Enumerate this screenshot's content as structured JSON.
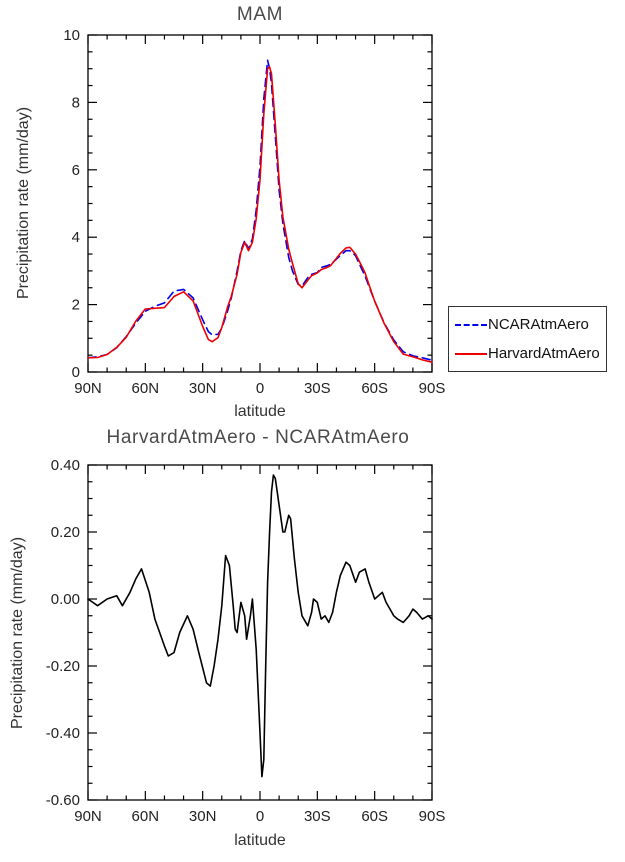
{
  "chart_data": [
    {
      "type": "line",
      "title": "MAM",
      "xlabel": "latitude",
      "ylabel": "Precipitation rate (mm/day)",
      "xlim": [
        90,
        -90
      ],
      "ylim": [
        0,
        10
      ],
      "grid": false,
      "legend_position": "right-outside",
      "xticks": {
        "values": [
          90,
          60,
          30,
          0,
          -30,
          -60,
          -90
        ],
        "labels": [
          "90N",
          "60N",
          "30N",
          "0",
          "30S",
          "60S",
          "90S"
        ],
        "minor_step": 10
      },
      "yticks": {
        "values": [
          0,
          2,
          4,
          6,
          8,
          10
        ],
        "labels": [
          "0",
          "2",
          "4",
          "6",
          "8",
          "10"
        ],
        "minor_step": 0.5
      },
      "x": [
        90,
        85,
        80,
        75,
        70,
        65,
        60,
        55,
        50,
        45,
        40,
        35,
        30,
        27,
        25,
        22,
        20,
        17,
        15,
        12,
        10,
        8,
        6,
        4,
        2,
        0,
        -2,
        -4,
        -5,
        -6,
        -8,
        -10,
        -12,
        -15,
        -17,
        -20,
        -22,
        -25,
        -27,
        -30,
        -32,
        -35,
        -37,
        -40,
        -42,
        -45,
        -47,
        -50,
        -52,
        -55,
        -57,
        -60,
        -65,
        -70,
        -75,
        -80,
        -85,
        -90
      ],
      "series": [
        {
          "name": "NCARAtmAero",
          "color": "#0000ee",
          "style": "dashed",
          "values": [
            0.42,
            0.45,
            0.52,
            0.72,
            1.05,
            1.45,
            1.8,
            1.95,
            2.05,
            2.4,
            2.45,
            2.2,
            1.55,
            1.2,
            1.1,
            1.12,
            1.3,
            1.8,
            2.2,
            3.0,
            3.6,
            3.9,
            3.65,
            3.95,
            4.8,
            6.1,
            8.1,
            9.25,
            9.0,
            8.55,
            7.0,
            5.4,
            4.4,
            3.4,
            3.0,
            2.6,
            2.55,
            2.8,
            2.9,
            2.95,
            3.1,
            3.15,
            3.2,
            3.35,
            3.45,
            3.6,
            3.6,
            3.45,
            3.2,
            2.85,
            2.55,
            2.1,
            1.45,
            0.95,
            0.6,
            0.48,
            0.42,
            0.35
          ]
        },
        {
          "name": "HarvardAtmAero",
          "color": "#ee0000",
          "style": "solid",
          "values": [
            0.42,
            0.43,
            0.52,
            0.73,
            1.03,
            1.51,
            1.87,
            1.89,
            1.91,
            2.24,
            2.38,
            2.11,
            1.35,
            0.96,
            0.9,
            1.02,
            1.32,
            1.92,
            2.25,
            2.9,
            3.55,
            3.85,
            3.6,
            3.85,
            4.55,
            5.7,
            7.65,
            9.0,
            9.05,
            8.85,
            7.35,
            5.7,
            4.6,
            3.65,
            3.22,
            2.62,
            2.5,
            2.72,
            2.86,
            2.94,
            3.04,
            3.1,
            3.16,
            3.37,
            3.52,
            3.68,
            3.7,
            3.5,
            3.28,
            2.94,
            2.6,
            2.1,
            1.44,
            0.9,
            0.53,
            0.45,
            0.36,
            0.29
          ]
        }
      ]
    },
    {
      "type": "line",
      "title": "HarvardAtmAero - NCARAtmAero",
      "xlabel": "latitude",
      "ylabel": "Precipitation rate (mm/day)",
      "xlim": [
        90,
        -90
      ],
      "ylim": [
        -0.6,
        0.4
      ],
      "grid": false,
      "legend_position": "none",
      "xticks": {
        "values": [
          90,
          60,
          30,
          0,
          -30,
          -60,
          -90
        ],
        "labels": [
          "90N",
          "60N",
          "30N",
          "0",
          "30S",
          "60S",
          "90S"
        ],
        "minor_step": 10
      },
      "yticks": {
        "values": [
          -0.6,
          -0.4,
          -0.2,
          0,
          0.2,
          0.4
        ],
        "labels": [
          "-0.60",
          "-0.40",
          "-0.20",
          "0.00",
          "0.20",
          "0.40"
        ],
        "minor_step": 0.05
      },
      "x": [
        90,
        85,
        80,
        75,
        72,
        68,
        65,
        62,
        58,
        55,
        50,
        48,
        45,
        42,
        38,
        35,
        32,
        28,
        26,
        24,
        22,
        20,
        18,
        16,
        14,
        13,
        12,
        10,
        8,
        7,
        5,
        4,
        2,
        0,
        -1,
        -2,
        -3,
        -4,
        -5,
        -6,
        -7,
        -8,
        -10,
        -12,
        -13,
        -15,
        -16,
        -18,
        -20,
        -22,
        -25,
        -27,
        -28,
        -30,
        -32,
        -34,
        -36,
        -38,
        -40,
        -42,
        -45,
        -47,
        -50,
        -52,
        -55,
        -57,
        -60,
        -62,
        -64,
        -66,
        -68,
        -70,
        -72,
        -75,
        -78,
        -80,
        -82,
        -85,
        -88,
        -90
      ],
      "series": [
        {
          "name": "HarvardAtmAero minus NCARAtmAero",
          "color": "#000000",
          "style": "solid",
          "values": [
            0.0,
            -0.02,
            0.0,
            0.01,
            -0.02,
            0.02,
            0.06,
            0.09,
            0.02,
            -0.06,
            -0.14,
            -0.17,
            -0.16,
            -0.1,
            -0.05,
            -0.09,
            -0.16,
            -0.25,
            -0.26,
            -0.2,
            -0.12,
            -0.02,
            0.13,
            0.1,
            -0.02,
            -0.09,
            -0.1,
            -0.01,
            -0.05,
            -0.12,
            -0.05,
            0.0,
            -0.15,
            -0.4,
            -0.53,
            -0.48,
            -0.2,
            0.05,
            0.2,
            0.32,
            0.37,
            0.36,
            0.28,
            0.2,
            0.2,
            0.25,
            0.24,
            0.12,
            0.02,
            -0.05,
            -0.08,
            -0.04,
            0.0,
            -0.01,
            -0.06,
            -0.05,
            -0.07,
            -0.04,
            0.02,
            0.07,
            0.11,
            0.1,
            0.05,
            0.08,
            0.09,
            0.05,
            0.0,
            0.01,
            0.02,
            -0.01,
            -0.03,
            -0.05,
            -0.06,
            -0.07,
            -0.05,
            -0.03,
            -0.04,
            -0.06,
            -0.05,
            -0.06
          ]
        }
      ]
    }
  ]
}
